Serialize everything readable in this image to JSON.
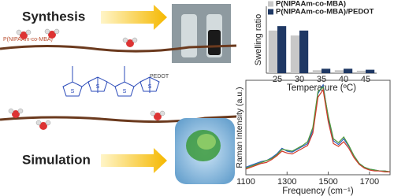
{
  "diagram": {
    "synthesis_label": "Synthesis",
    "simulation_label": "Simulation",
    "polymer_label": "P(NIPAAm-co-MBA)",
    "pedot_label": "PEDOT",
    "atom_labels": [
      "S",
      "S",
      "S",
      "S"
    ]
  },
  "chart_data": [
    {
      "type": "bar",
      "ylabel": "Swelling ratio",
      "xlabel": "Temperature (ºC)",
      "categories": [
        "25",
        "30",
        "35",
        "40",
        "45"
      ],
      "series": [
        {
          "name": "P(NIPAAm-co-MBA)",
          "color": "#c8c8c8",
          "values": [
            0.86,
            0.76,
            0.06,
            0.06,
            0.05
          ]
        },
        {
          "name": "P(NIPAAm-co-MBA)/PEDOT",
          "color": "#1f3864",
          "values": [
            0.95,
            0.86,
            0.09,
            0.09,
            0.07
          ]
        }
      ],
      "ylim": [
        0,
        1
      ],
      "legend": "top"
    },
    {
      "type": "line",
      "ylabel": "Raman Intensity (a.u.)",
      "xlabel": "Frequency (cm⁻¹)",
      "x": [
        1100,
        1125,
        1150,
        1175,
        1200,
        1225,
        1250,
        1275,
        1300,
        1325,
        1350,
        1375,
        1400,
        1425,
        1450,
        1475,
        1500,
        1525,
        1550,
        1575,
        1600,
        1625,
        1650,
        1675,
        1700,
        1725,
        1750,
        1775,
        1800
      ],
      "series": [
        {
          "color": "#2e5fbf",
          "values": [
            0.08,
            0.1,
            0.12,
            0.14,
            0.15,
            0.18,
            0.22,
            0.28,
            0.25,
            0.24,
            0.27,
            0.3,
            0.33,
            0.47,
            0.86,
            0.95,
            0.6,
            0.36,
            0.32,
            0.38,
            0.3,
            0.2,
            0.12,
            0.08,
            0.06,
            0.05,
            0.04,
            0.04,
            0.03
          ]
        },
        {
          "color": "#4e9a3a",
          "values": [
            0.07,
            0.09,
            0.11,
            0.13,
            0.15,
            0.17,
            0.21,
            0.27,
            0.26,
            0.25,
            0.28,
            0.31,
            0.35,
            0.5,
            0.88,
            0.93,
            0.62,
            0.38,
            0.34,
            0.4,
            0.31,
            0.2,
            0.12,
            0.08,
            0.06,
            0.05,
            0.04,
            0.04,
            0.03
          ]
        },
        {
          "color": "#d03a2a",
          "values": [
            0.06,
            0.08,
            0.1,
            0.12,
            0.13,
            0.16,
            0.2,
            0.25,
            0.23,
            0.22,
            0.25,
            0.28,
            0.31,
            0.44,
            0.82,
            0.9,
            0.56,
            0.33,
            0.3,
            0.35,
            0.28,
            0.18,
            0.11,
            0.07,
            0.05,
            0.04,
            0.04,
            0.03,
            0.03
          ]
        }
      ],
      "xlim": [
        1100,
        1800
      ],
      "xticks": [
        1100,
        1300,
        1500,
        1700
      ],
      "ylim": [
        0,
        1
      ]
    }
  ]
}
